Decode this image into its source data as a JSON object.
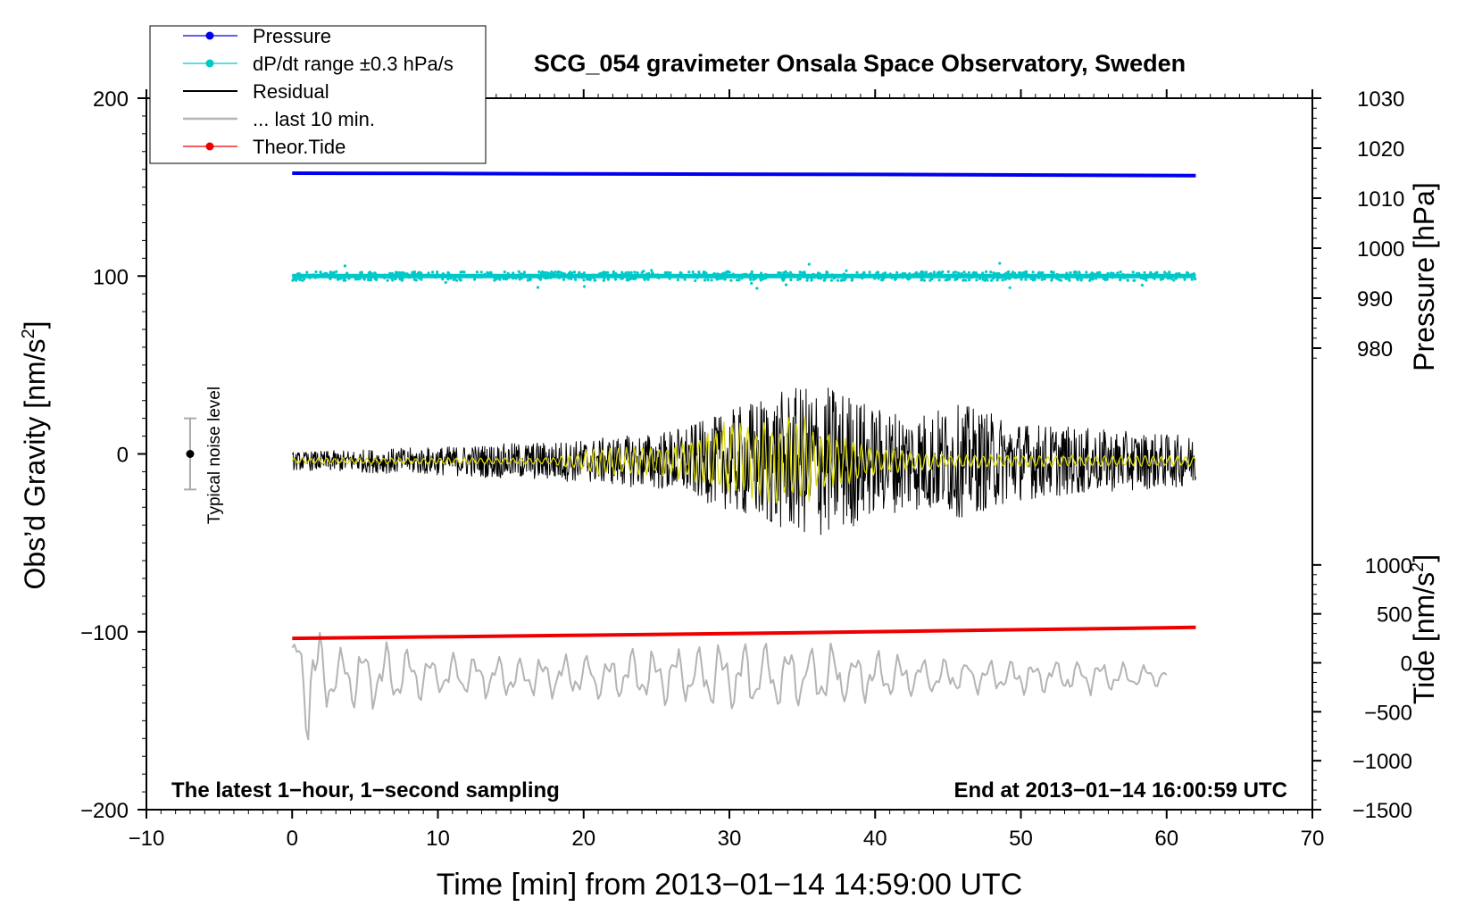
{
  "chart_data": {
    "type": "line",
    "title": "SCG_054 gravimeter Onsala Space Observatory, Sweden",
    "xlabel": "Time [min] from 2013−01−14 14:59:00 UTC",
    "ylabel": "Obs’d Gravity [nm/s2]",
    "ylabel_main": "Obs’d Gravity [nm/s",
    "ylabel_sup": "2",
    "ylabel_close": "]",
    "y2label": "Pressure [hPa]",
    "y3label_main": "Tide [nm/s",
    "y3label_sup": "2",
    "y3label_close": "]",
    "xlim": [
      -10,
      70
    ],
    "ylim": [
      -200,
      200
    ],
    "x_ticks": [
      -10,
      0,
      10,
      20,
      30,
      40,
      50,
      60,
      70
    ],
    "x_tick_labels": [
      "−10",
      "0",
      "10",
      "20",
      "30",
      "40",
      "50",
      "60",
      "70"
    ],
    "y_ticks": [
      -200,
      -100,
      0,
      100,
      200
    ],
    "y_tick_labels": [
      "−200",
      "−100",
      "0",
      "100",
      "200"
    ],
    "pressure_axis": {
      "range": [
        970,
        1030
      ],
      "ticks": [
        980,
        990,
        1000,
        1010,
        1020,
        1030
      ],
      "tick_labels": [
        "980",
        "990",
        "1000",
        "1010",
        "1020",
        "1030"
      ]
    },
    "tide_axis": {
      "range": [
        -1500,
        1500
      ],
      "ticks": [
        -1500,
        -1000,
        -500,
        0,
        500,
        1000
      ],
      "tick_labels": [
        "−1500",
        "−1000",
        "−500",
        "0",
        "500",
        "1000"
      ]
    },
    "legend": {
      "location": "top-left",
      "entries": [
        {
          "label": "Pressure",
          "color": "#0000ee",
          "marker": true
        },
        {
          "label": "dP/dt range ±0.3 hPa/s",
          "color": "#00c8c8",
          "marker": true
        },
        {
          "label": "Residual",
          "color": "#000000",
          "marker": false
        },
        {
          "label": "... last 10 min.",
          "color": "#b4b4b4",
          "marker": false
        },
        {
          "label": "Theor.Tide",
          "color": "#ee0000",
          "marker": true
        }
      ]
    },
    "annotations": {
      "bottom_left": "The latest 1−hour, 1−second sampling",
      "bottom_right": "End at 2013−01−14 16:00:59 UTC",
      "noise_label": "Typical noise level"
    },
    "noise_bar": {
      "x": -7,
      "center": 0,
      "half_range": 20
    },
    "series": [
      {
        "name": "Pressure",
        "axis": "pressure",
        "color": "#0000ee",
        "x": [
          0,
          10,
          20,
          30,
          40,
          50,
          62
        ],
        "values": [
          1015.0,
          1014.95,
          1014.85,
          1014.8,
          1014.75,
          1014.65,
          1014.5
        ]
      },
      {
        "name": "dP/dt range ±0.3 hPa/s",
        "axis": "gravity",
        "color": "#00c8c8",
        "x_range": [
          0,
          62
        ],
        "center": 100,
        "spread": 2.5
      },
      {
        "name": "Residual",
        "axis": "gravity",
        "color": "#000000",
        "x_range": [
          0,
          62
        ],
        "center": -4,
        "envelope": {
          "x": [
            0,
            10,
            15,
            20,
            25,
            28,
            30,
            32,
            34,
            36,
            38,
            40,
            43,
            46,
            50,
            55,
            62
          ],
          "amplitude": [
            5,
            8,
            10,
            12,
            16,
            22,
            28,
            36,
            40,
            44,
            40,
            30,
            28,
            32,
            22,
            18,
            14
          ]
        }
      },
      {
        "name": "Residual (filtered)",
        "axis": "gravity",
        "color": "#d8d800",
        "x_range": [
          0,
          62
        ],
        "center": -4,
        "envelope": {
          "x": [
            0,
            18,
            21,
            25,
            28,
            30,
            32,
            34,
            35,
            36,
            38,
            40,
            45,
            62
          ],
          "amplitude": [
            2,
            2,
            8,
            8,
            14,
            24,
            22,
            26,
            30,
            18,
            14,
            8,
            4,
            3
          ]
        }
      },
      {
        "name": "... last 10 min.",
        "axis": "gravity",
        "color": "#b4b4b4",
        "x_range": [
          0,
          60
        ],
        "center": -125,
        "envelope": {
          "x": [
            0,
            1,
            3,
            6,
            10,
            20,
            30,
            37,
            45,
            55,
            60
          ],
          "amplitude": [
            30,
            38,
            15,
            20,
            12,
            12,
            20,
            18,
            10,
            10,
            5
          ]
        }
      },
      {
        "name": "Theor.Tide",
        "axis": "tide",
        "color": "#ee0000",
        "x": [
          0,
          10,
          20,
          30,
          40,
          50,
          62
        ],
        "values": [
          250,
          265,
          282,
          298,
          318,
          338,
          362
        ]
      }
    ]
  }
}
